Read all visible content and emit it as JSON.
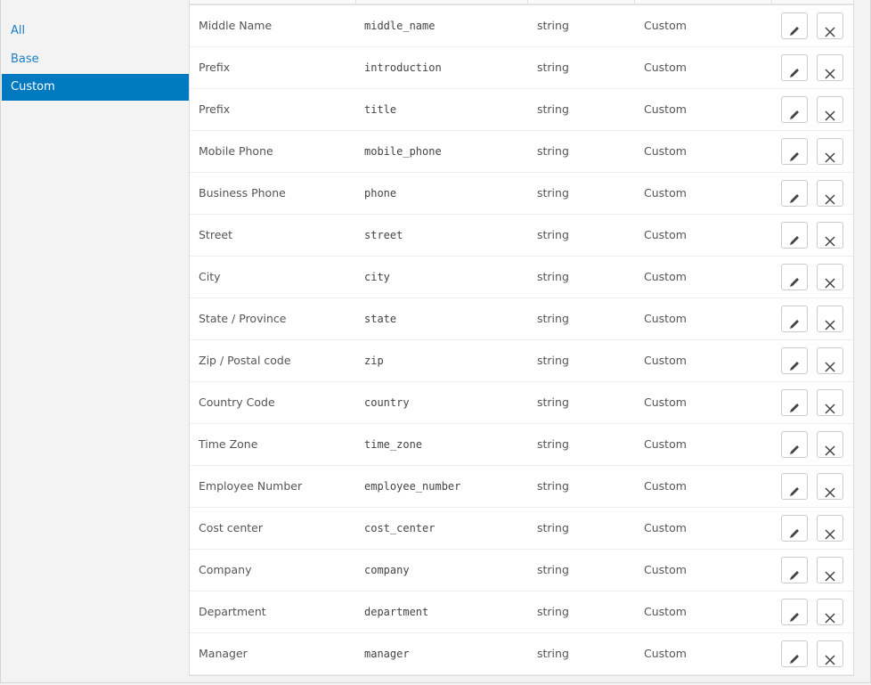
{
  "sidebar": {
    "items": [
      {
        "label": "All"
      },
      {
        "label": "Base"
      },
      {
        "label": "Custom",
        "active": true
      }
    ]
  },
  "colors": {
    "accent": "#0079c1",
    "link": "#1a7fc4"
  },
  "table": {
    "rows": [
      [
        "Middle Name",
        "middle_name",
        "string",
        "Custom"
      ],
      [
        "Prefix",
        "introduction",
        "string",
        "Custom"
      ],
      [
        "Prefix",
        "title",
        "string",
        "Custom"
      ],
      [
        "Mobile Phone",
        "mobile_phone",
        "string",
        "Custom"
      ],
      [
        "Business Phone",
        "phone",
        "string",
        "Custom"
      ],
      [
        "Street",
        "street",
        "string",
        "Custom"
      ],
      [
        "City",
        "city",
        "string",
        "Custom"
      ],
      [
        "State / Province",
        "state",
        "string",
        "Custom"
      ],
      [
        "Zip / Postal code",
        "zip",
        "string",
        "Custom"
      ],
      [
        "Country Code",
        "country",
        "string",
        "Custom"
      ],
      [
        "Time Zone",
        "time_zone",
        "string",
        "Custom"
      ],
      [
        "Employee Number",
        "employee_number",
        "string",
        "Custom"
      ],
      [
        "Cost center",
        "cost_center",
        "string",
        "Custom"
      ],
      [
        "Company",
        "company",
        "string",
        "Custom"
      ],
      [
        "Department",
        "department",
        "string",
        "Custom"
      ],
      [
        "Manager",
        "manager",
        "string",
        "Custom"
      ]
    ],
    "row_icons": [
      "pencil-icon",
      "close-icon"
    ]
  }
}
